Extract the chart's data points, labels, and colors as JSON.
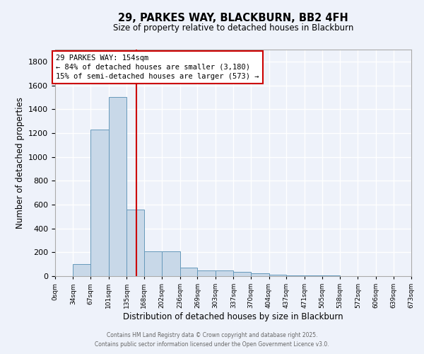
{
  "title": "29, PARKES WAY, BLACKBURN, BB2 4FH",
  "subtitle": "Size of property relative to detached houses in Blackburn",
  "xlabel": "Distribution of detached houses by size in Blackburn",
  "ylabel": "Number of detached properties",
  "bar_color": "#c8d8e8",
  "bar_edge_color": "#6699bb",
  "background_color": "#eef2fa",
  "grid_color": "#ffffff",
  "red_line_x": 154,
  "annotation_title": "29 PARKES WAY: 154sqm",
  "annotation_line1": "← 84% of detached houses are smaller (3,180)",
  "annotation_line2": "15% of semi-detached houses are larger (573) →",
  "bin_edges": [
    0,
    34,
    67,
    101,
    135,
    168,
    202,
    236,
    269,
    303,
    337,
    370,
    404,
    437,
    471,
    505,
    538,
    572,
    606,
    639,
    673
  ],
  "bar_heights": [
    0,
    100,
    1230,
    1500,
    560,
    210,
    210,
    70,
    50,
    50,
    35,
    25,
    10,
    8,
    5,
    3,
    2,
    1,
    0,
    0
  ],
  "ylim": [
    0,
    1900
  ],
  "yticks": [
    0,
    200,
    400,
    600,
    800,
    1000,
    1200,
    1400,
    1600,
    1800
  ],
  "xtick_labels": [
    "0sqm",
    "34sqm",
    "67sqm",
    "101sqm",
    "135sqm",
    "168sqm",
    "202sqm",
    "236sqm",
    "269sqm",
    "303sqm",
    "337sqm",
    "370sqm",
    "404sqm",
    "437sqm",
    "471sqm",
    "505sqm",
    "538sqm",
    "572sqm",
    "606sqm",
    "639sqm",
    "673sqm"
  ],
  "footer_line1": "Contains HM Land Registry data © Crown copyright and database right 2025.",
  "footer_line2": "Contains public sector information licensed under the Open Government Licence v3.0."
}
